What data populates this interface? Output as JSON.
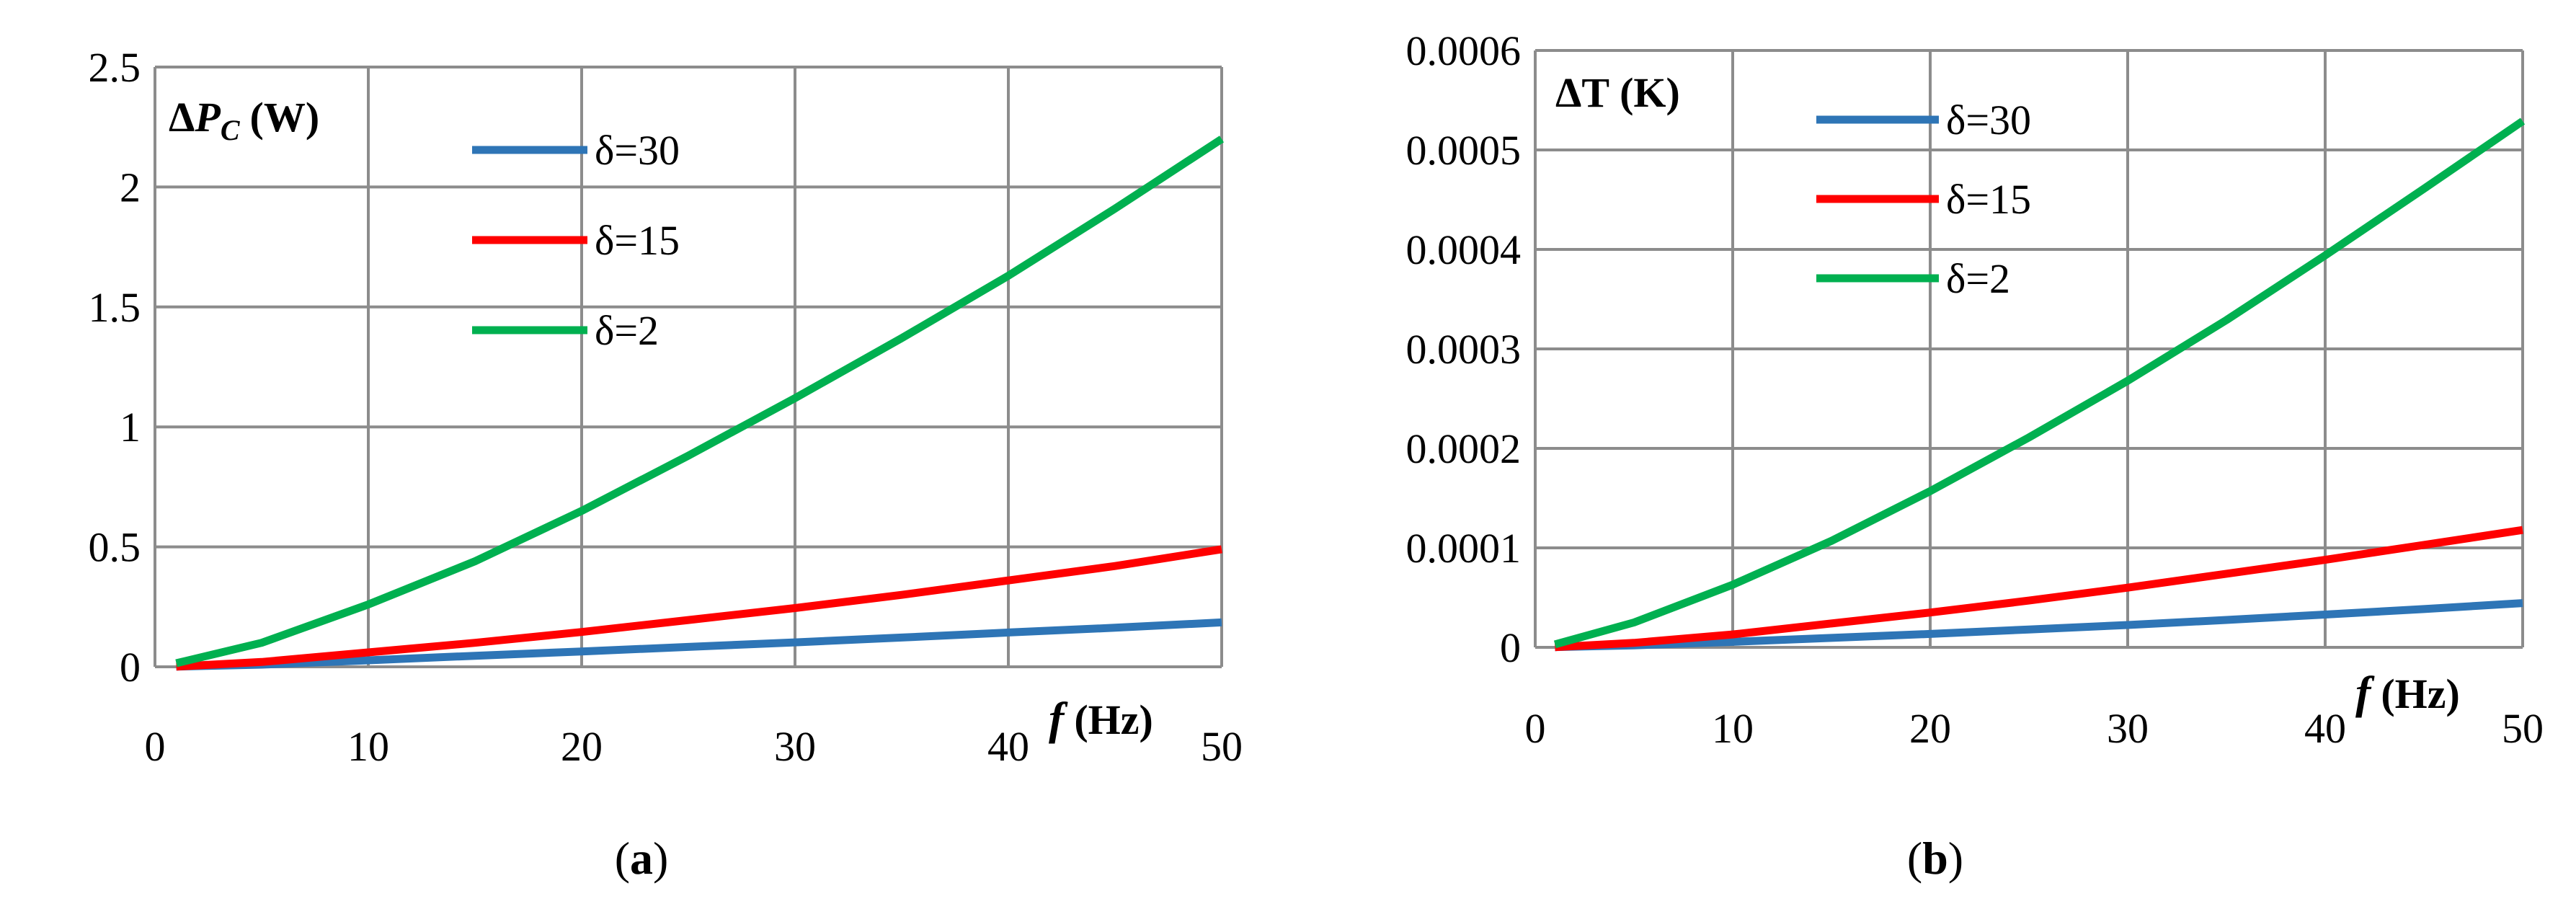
{
  "chart_data": [
    {
      "type": "line",
      "panel_label": "a",
      "ylabel": {
        "symbol": "ΔP",
        "subscript": "C",
        "unit": "(W)"
      },
      "xlabel": {
        "symbol": "f",
        "unit": "(Hz)"
      },
      "xlim": [
        0,
        50
      ],
      "ylim": [
        0,
        2.5
      ],
      "xticks": [
        "0",
        "10",
        "20",
        "30",
        "40",
        "50"
      ],
      "yticks": [
        "0",
        "0.5",
        "1",
        "1.5",
        "2",
        "2.5"
      ],
      "grid": true,
      "legend_position": "top-center",
      "series": [
        {
          "name": "δ=30",
          "color": "#2E75B6",
          "x": [
            1,
            5,
            10,
            15,
            20,
            25,
            30,
            35,
            40,
            45,
            50
          ],
          "y": [
            0.0008,
            0.009,
            0.027,
            0.046,
            0.064,
            0.083,
            0.102,
            0.122,
            0.143,
            0.163,
            0.185
          ]
        },
        {
          "name": "δ=15",
          "color": "#FF0000",
          "x": [
            1,
            5,
            10,
            15,
            20,
            25,
            30,
            35,
            40,
            45,
            50
          ],
          "y": [
            0.001,
            0.02,
            0.06,
            0.1,
            0.145,
            0.195,
            0.245,
            0.3,
            0.36,
            0.42,
            0.49
          ]
        },
        {
          "name": "δ=2",
          "color": "#00B050",
          "x": [
            1,
            5,
            10,
            15,
            20,
            25,
            30,
            35,
            40,
            45,
            50
          ],
          "y": [
            0.015,
            0.1,
            0.26,
            0.44,
            0.65,
            0.88,
            1.12,
            1.37,
            1.63,
            1.91,
            2.2
          ]
        }
      ]
    },
    {
      "type": "line",
      "panel_label": "b",
      "ylabel": {
        "symbol": "ΔT",
        "subscript": "",
        "unit": "(K)"
      },
      "xlabel": {
        "symbol": "f",
        "unit": "(Hz)"
      },
      "xlim": [
        0,
        50
      ],
      "ylim": [
        0,
        0.0006
      ],
      "xticks": [
        "0",
        "10",
        "20",
        "30",
        "40",
        "50"
      ],
      "yticks": [
        "0",
        "0.0001",
        "0.0002",
        "0.0003",
        "0.0004",
        "0.0005",
        "0.0006"
      ],
      "grid": true,
      "legend_position": "top-center",
      "series": [
        {
          "name": "δ=30",
          "color": "#2E75B6",
          "x": [
            1,
            5,
            10,
            15,
            20,
            25,
            30,
            35,
            40,
            45,
            50
          ],
          "y": [
            2e-07,
            2e-06,
            5.5e-06,
            9.5e-06,
            1.35e-05,
            1.8e-05,
            2.25e-05,
            2.75e-05,
            3.3e-05,
            3.85e-05,
            4.45e-05
          ]
        },
        {
          "name": "δ=15",
          "color": "#FF0000",
          "x": [
            1,
            5,
            10,
            15,
            20,
            25,
            30,
            35,
            40,
            45,
            50
          ],
          "y": [
            2e-07,
            4.5e-06,
            1.3e-05,
            2.4e-05,
            3.5e-05,
            4.7e-05,
            6e-05,
            7.4e-05,
            8.8e-05,
            0.000103,
            0.000118
          ]
        },
        {
          "name": "δ=2",
          "color": "#00B050",
          "x": [
            1,
            5,
            10,
            15,
            20,
            25,
            30,
            35,
            40,
            45,
            50
          ],
          "y": [
            3e-06,
            2.5e-05,
            6.3e-05,
            0.000107,
            0.000157,
            0.000211,
            0.000268,
            0.000329,
            0.000394,
            0.000461,
            0.000529
          ]
        }
      ]
    }
  ]
}
